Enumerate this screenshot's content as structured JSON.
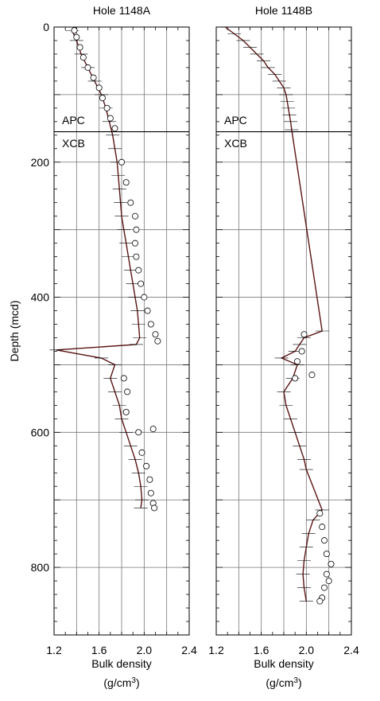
{
  "chart_data": [
    {
      "type": "line+scatter",
      "title": "Hole 1148A",
      "xlabel": "Bulk density",
      "xunit": "(g/cm",
      "xunit_sup": "3",
      "xunit_close": ")",
      "ylabel": "Depth (mcd)",
      "xlim": [
        1.2,
        2.4
      ],
      "ylim": [
        0,
        900
      ],
      "y_inverted": true,
      "xticks": [
        "1.2",
        "1.6",
        "2.0",
        "2.4"
      ],
      "xtick_values": [
        1.2,
        1.6,
        2.0,
        2.4
      ],
      "yticks": [
        "0",
        "200",
        "400",
        "600",
        "800"
      ],
      "ytick_values": [
        0,
        200,
        400,
        600,
        800
      ],
      "grid": true,
      "annotations": [
        {
          "text": "APC",
          "depth": 138
        },
        {
          "text": "XCB",
          "depth": 172
        }
      ],
      "boundary_depth": 155,
      "series": [
        {
          "kind": "line",
          "description_values": "GRA log trend (depth, density)",
          "values": [
            [
              5,
              1.36
            ],
            [
              20,
              1.4
            ],
            [
              40,
              1.44
            ],
            [
              60,
              1.5
            ],
            [
              80,
              1.56
            ],
            [
              100,
              1.62
            ],
            [
              120,
              1.66
            ],
            [
              140,
              1.69
            ],
            [
              160,
              1.72
            ],
            [
              180,
              1.74
            ],
            [
              200,
              1.76
            ],
            [
              220,
              1.77
            ],
            [
              240,
              1.78
            ],
            [
              260,
              1.79
            ],
            [
              280,
              1.8
            ],
            [
              300,
              1.82
            ],
            [
              320,
              1.84
            ],
            [
              340,
              1.86
            ],
            [
              360,
              1.88
            ],
            [
              380,
              1.9
            ],
            [
              400,
              1.92
            ],
            [
              420,
              1.94
            ],
            [
              440,
              1.95
            ],
            [
              460,
              1.96
            ],
            [
              470,
              1.93
            ],
            [
              478,
              1.22
            ],
            [
              490,
              1.62
            ],
            [
              500,
              1.74
            ],
            [
              520,
              1.7
            ],
            [
              540,
              1.74
            ],
            [
              560,
              1.78
            ],
            [
              580,
              1.8
            ],
            [
              600,
              1.84
            ],
            [
              620,
              1.88
            ],
            [
              640,
              1.92
            ],
            [
              660,
              1.95
            ],
            [
              680,
              1.97
            ],
            [
              700,
              1.98
            ],
            [
              712,
              1.97
            ]
          ]
        },
        {
          "kind": "scatter",
          "description_values": "discrete sample densities (depth, density)",
          "values": [
            [
              5,
              1.38
            ],
            [
              15,
              1.4
            ],
            [
              30,
              1.43
            ],
            [
              45,
              1.46
            ],
            [
              60,
              1.5
            ],
            [
              75,
              1.55
            ],
            [
              90,
              1.6
            ],
            [
              105,
              1.63
            ],
            [
              120,
              1.67
            ],
            [
              135,
              1.7
            ],
            [
              150,
              1.74
            ],
            [
              200,
              1.8
            ],
            [
              230,
              1.84
            ],
            [
              260,
              1.88
            ],
            [
              280,
              1.92
            ],
            [
              300,
              1.93
            ],
            [
              320,
              1.92
            ],
            [
              340,
              1.93
            ],
            [
              360,
              1.95
            ],
            [
              380,
              1.97
            ],
            [
              400,
              2.0
            ],
            [
              420,
              2.03
            ],
            [
              440,
              2.06
            ],
            [
              455,
              2.1
            ],
            [
              465,
              2.12
            ],
            [
              520,
              1.82
            ],
            [
              540,
              1.85
            ],
            [
              570,
              1.84
            ],
            [
              595,
              2.08
            ],
            [
              600,
              1.95
            ],
            [
              630,
              1.98
            ],
            [
              650,
              2.02
            ],
            [
              670,
              2.05
            ],
            [
              690,
              2.06
            ],
            [
              705,
              2.08
            ],
            [
              712,
              2.09
            ]
          ]
        }
      ]
    },
    {
      "type": "line+scatter",
      "title": "Hole 1148B",
      "xlabel": "Bulk density",
      "xunit": "(g/cm",
      "xunit_sup": "3",
      "xunit_close": ")",
      "xlim": [
        1.2,
        2.4
      ],
      "ylim": [
        0,
        900
      ],
      "y_inverted": true,
      "xticks": [
        "1.2",
        "1.6",
        "2.0",
        "2.4"
      ],
      "xtick_values": [
        1.2,
        1.6,
        2.0,
        2.4
      ],
      "grid": true,
      "annotations": [
        {
          "text": "APC",
          "depth": 138
        },
        {
          "text": "XCB",
          "depth": 172
        }
      ],
      "boundary_depth": 155,
      "series": [
        {
          "kind": "line",
          "description_values": "GRA log trend (depth, density)",
          "values": [
            [
              0,
              1.28
            ],
            [
              10,
              1.36
            ],
            [
              20,
              1.44
            ],
            [
              30,
              1.5
            ],
            [
              40,
              1.56
            ],
            [
              50,
              1.62
            ],
            [
              60,
              1.66
            ],
            [
              70,
              1.72
            ],
            [
              80,
              1.76
            ],
            [
              90,
              1.8
            ],
            [
              100,
              1.82
            ],
            [
              110,
              1.83
            ],
            [
              120,
              1.84
            ],
            [
              130,
              1.85
            ],
            [
              140,
              1.86
            ],
            [
              152,
              1.87
            ],
            [
              450,
              2.14
            ],
            [
              460,
              1.98
            ],
            [
              470,
              1.94
            ],
            [
              480,
              1.9
            ],
            [
              490,
              1.78
            ],
            [
              500,
              1.92
            ],
            [
              520,
              1.88
            ],
            [
              540,
              1.8
            ],
            [
              560,
              1.82
            ],
            [
              580,
              1.86
            ],
            [
              600,
              1.9
            ],
            [
              620,
              1.94
            ],
            [
              640,
              1.98
            ],
            [
              655,
              2.0
            ],
            [
              715,
              2.14
            ],
            [
              730,
              2.06
            ],
            [
              750,
              2.02
            ],
            [
              770,
              2.0
            ],
            [
              790,
              1.98
            ],
            [
              810,
              1.97
            ],
            [
              830,
              1.98
            ],
            [
              850,
              2.0
            ]
          ]
        },
        {
          "kind": "scatter",
          "description_values": "discrete sample densities (depth, density)",
          "values": [
            [
              455,
              1.98
            ],
            [
              480,
              1.96
            ],
            [
              495,
              1.92
            ],
            [
              515,
              2.05
            ],
            [
              520,
              1.9
            ],
            [
              720,
              2.12
            ],
            [
              740,
              2.14
            ],
            [
              760,
              2.16
            ],
            [
              780,
              2.18
            ],
            [
              795,
              2.22
            ],
            [
              810,
              2.18
            ],
            [
              820,
              2.2
            ],
            [
              830,
              2.16
            ],
            [
              845,
              2.14
            ],
            [
              850,
              2.12
            ]
          ]
        }
      ]
    }
  ]
}
